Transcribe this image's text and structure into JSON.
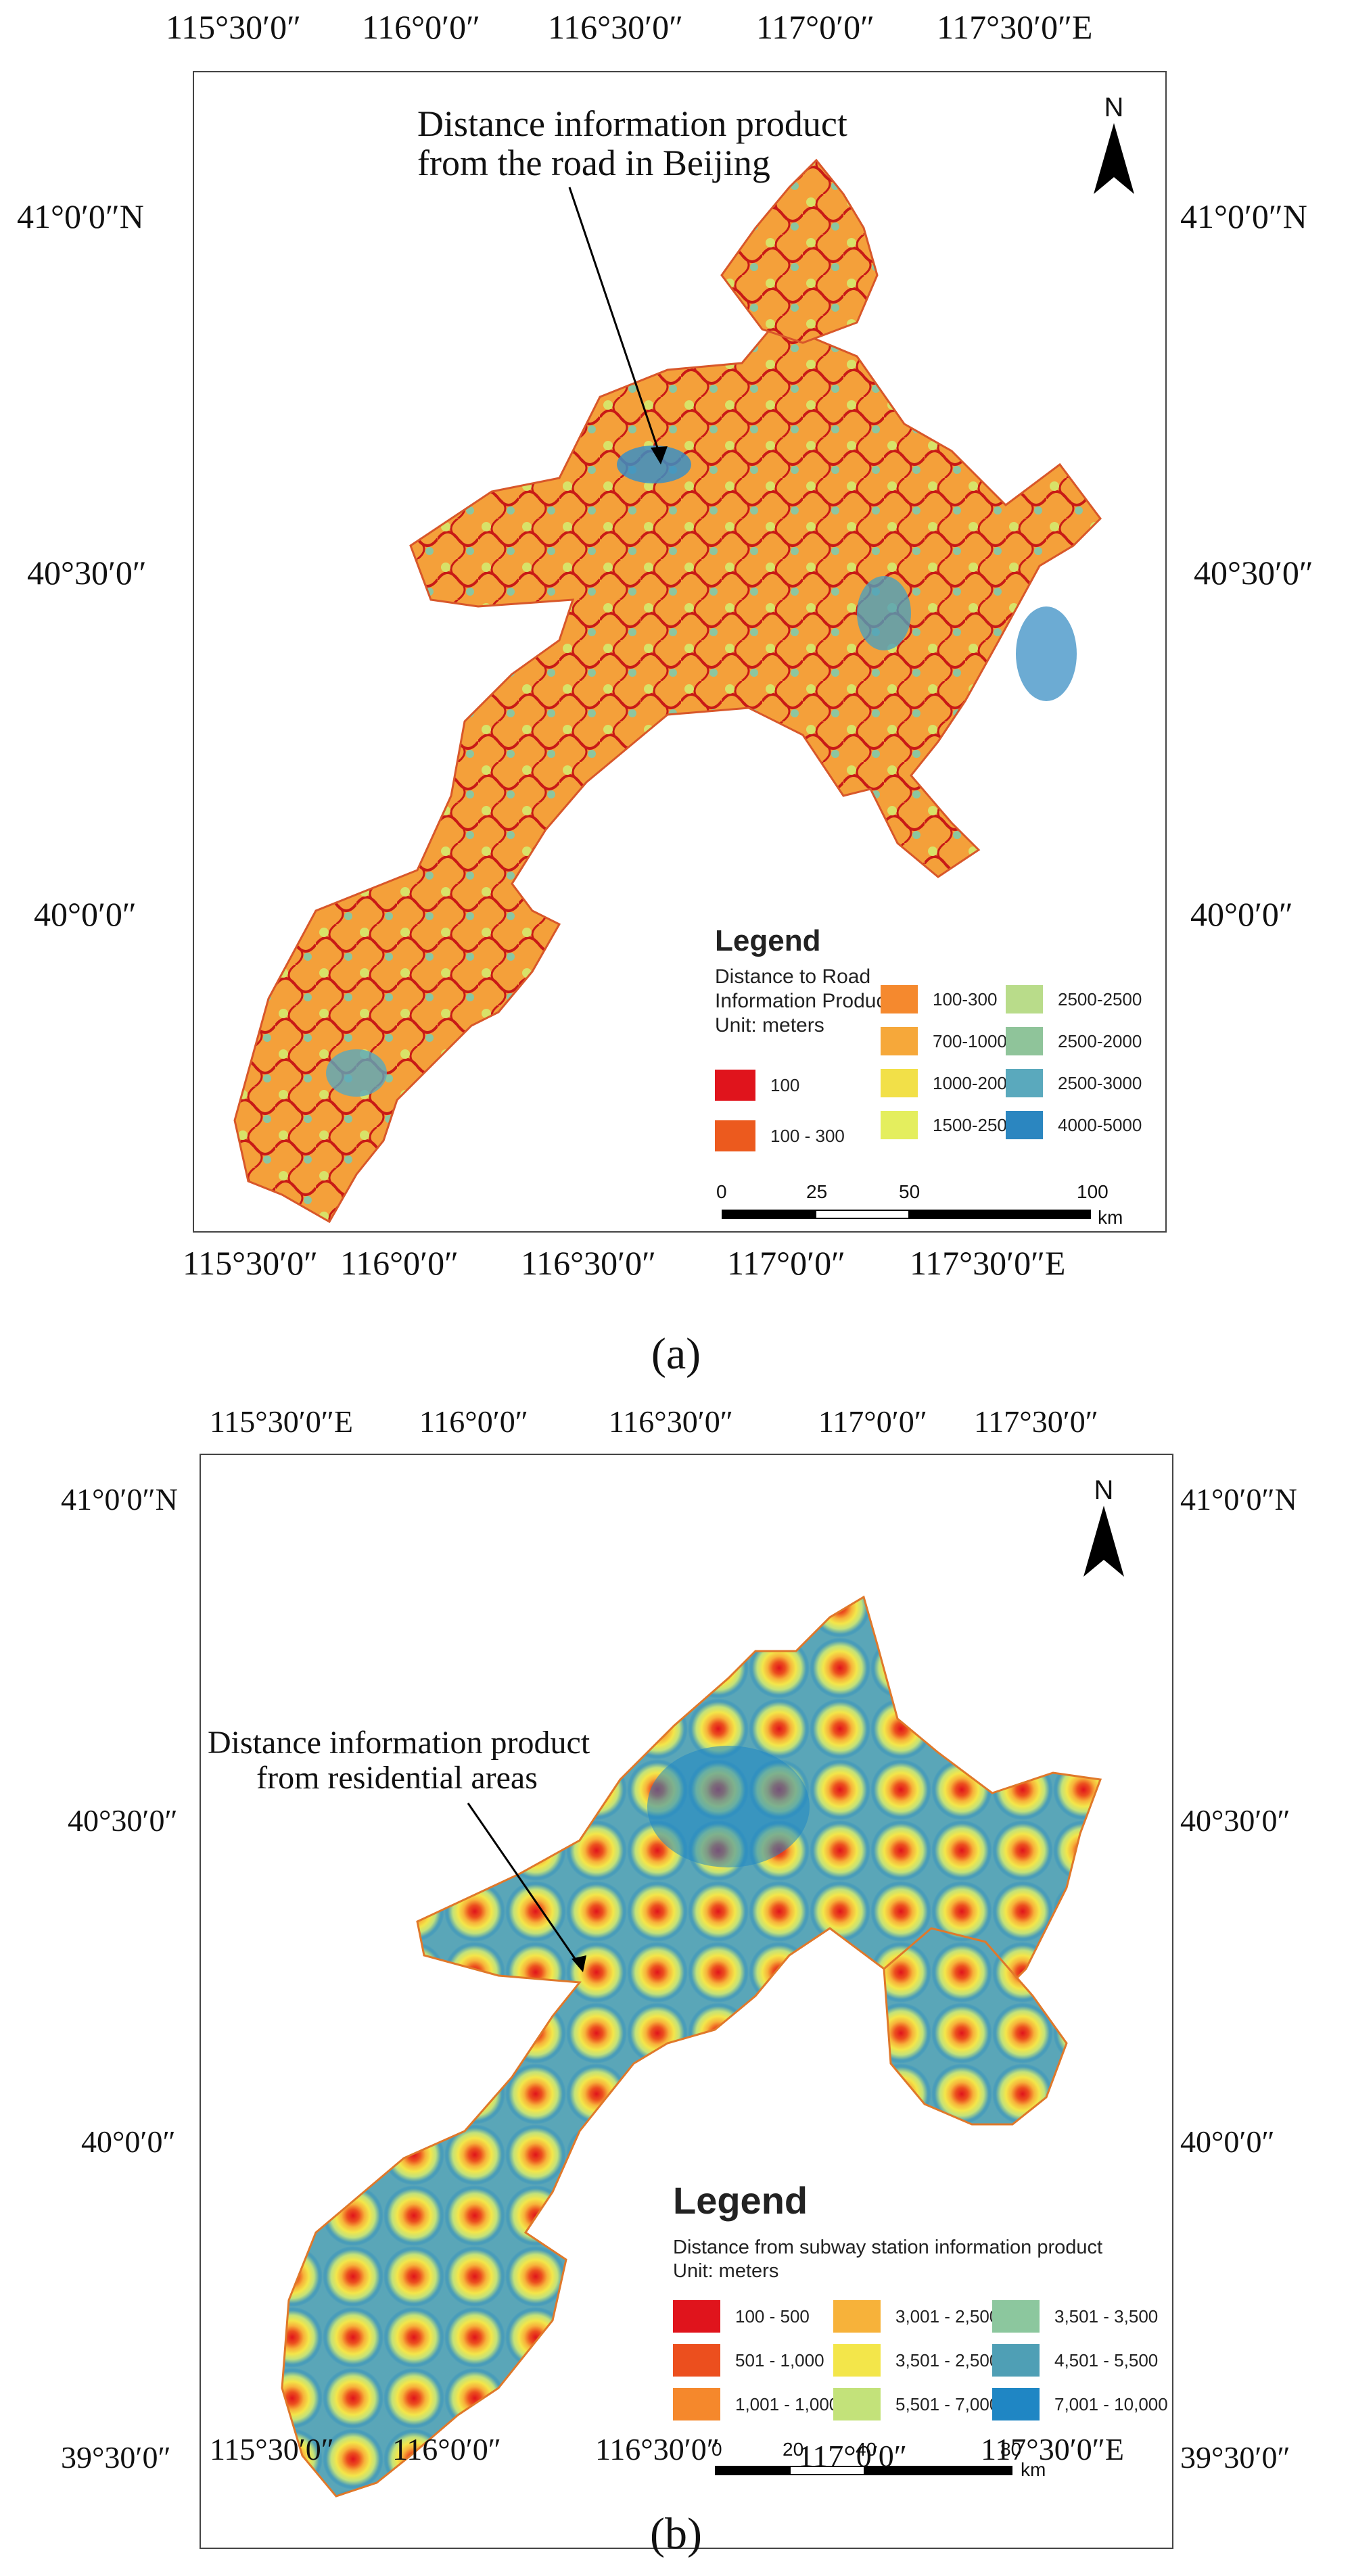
{
  "panel_a": {
    "label": "(a)",
    "top_coords": [
      "115°30′0″",
      "116°0′0″",
      "116°30′0″",
      "117°0′0″",
      "117°30′0″E"
    ],
    "bottom_coords": [
      "115°30′0″",
      "116°0′0″",
      "116°30′0″",
      "117°0′0″",
      "117°30′0″E"
    ],
    "left_coords": [
      "41°0′0″N",
      "40°30′0″",
      "40°0′0″"
    ],
    "right_coords": [
      "41°0′0″N",
      "40°30′0″",
      "40°0′0″"
    ],
    "annotation": [
      "Distance information product",
      "from the road in Beijing"
    ],
    "north": "N",
    "legend": {
      "title": "Legend",
      "subtitle": [
        "Distance to Road",
        "Information Product",
        "Unit: meters"
      ],
      "items": [
        {
          "label": "100",
          "color": "#e0141c"
        },
        {
          "label": "100 - 300",
          "color": "#ec5a1e"
        },
        {
          "label": "100-300",
          "color": "#f5892e"
        },
        {
          "label": "700-1000",
          "color": "#f6a83a"
        },
        {
          "label": "1000-2000",
          "color": "#f2e048"
        },
        {
          "label": "1500-2500",
          "color": "#e4ee5e"
        },
        {
          "label": "2500-2500",
          "color": "#b9dc8a"
        },
        {
          "label": "2500-2000",
          "color": "#8fc49a"
        },
        {
          "label": "2500-3000",
          "color": "#5aa9bd"
        },
        {
          "label": "4000-5000",
          "color": "#2b86c0"
        }
      ]
    },
    "scale": {
      "ticks": [
        "0",
        "25",
        "50",
        "100"
      ],
      "unit": "km"
    }
  },
  "panel_b": {
    "label": "(b)",
    "top_coords": [
      "115°30′0″E",
      "116°0′0″",
      "116°30′0″",
      "117°0′0″",
      "117°30′0″"
    ],
    "bottom_coords": [
      "115°30′0″",
      "116°0′0″",
      "116°30′0″",
      "117°0′0″",
      "117°30′0″E"
    ],
    "left_coords": [
      "41°0′0″N",
      "40°30′0″",
      "40°0′0″",
      "39°30′0″"
    ],
    "right_coords": [
      "41°0′0″N",
      "40°30′0″",
      "40°0′0″",
      "39°30′0″"
    ],
    "annotation": [
      "Distance information product",
      "from residential areas"
    ],
    "north": "N",
    "legend": {
      "title": "Legend",
      "subtitle": [
        "Distance from subway station information product",
        "Unit: meters"
      ],
      "items": [
        {
          "label": "100 - 500",
          "color": "#e0141c"
        },
        {
          "label": "501 - 1,000",
          "color": "#ec4f1e"
        },
        {
          "label": "1,001 - 1,000",
          "color": "#f5882c"
        },
        {
          "label": "3,001 - 2,500",
          "color": "#f7b23a"
        },
        {
          "label": "3,501 - 2,500",
          "color": "#f3e64a"
        },
        {
          "label": "5,501 - 7,000",
          "color": "#c3e27a"
        },
        {
          "label": "3,501 - 3,500",
          "color": "#8cc79e"
        },
        {
          "label": "4,501 - 5,500",
          "color": "#4f9fb5"
        },
        {
          "label": "7,001 - 10,000",
          "color": "#1f86c4"
        }
      ]
    },
    "scale": {
      "ticks": [
        "0",
        "20",
        "40",
        "80"
      ],
      "unit": "km"
    }
  }
}
